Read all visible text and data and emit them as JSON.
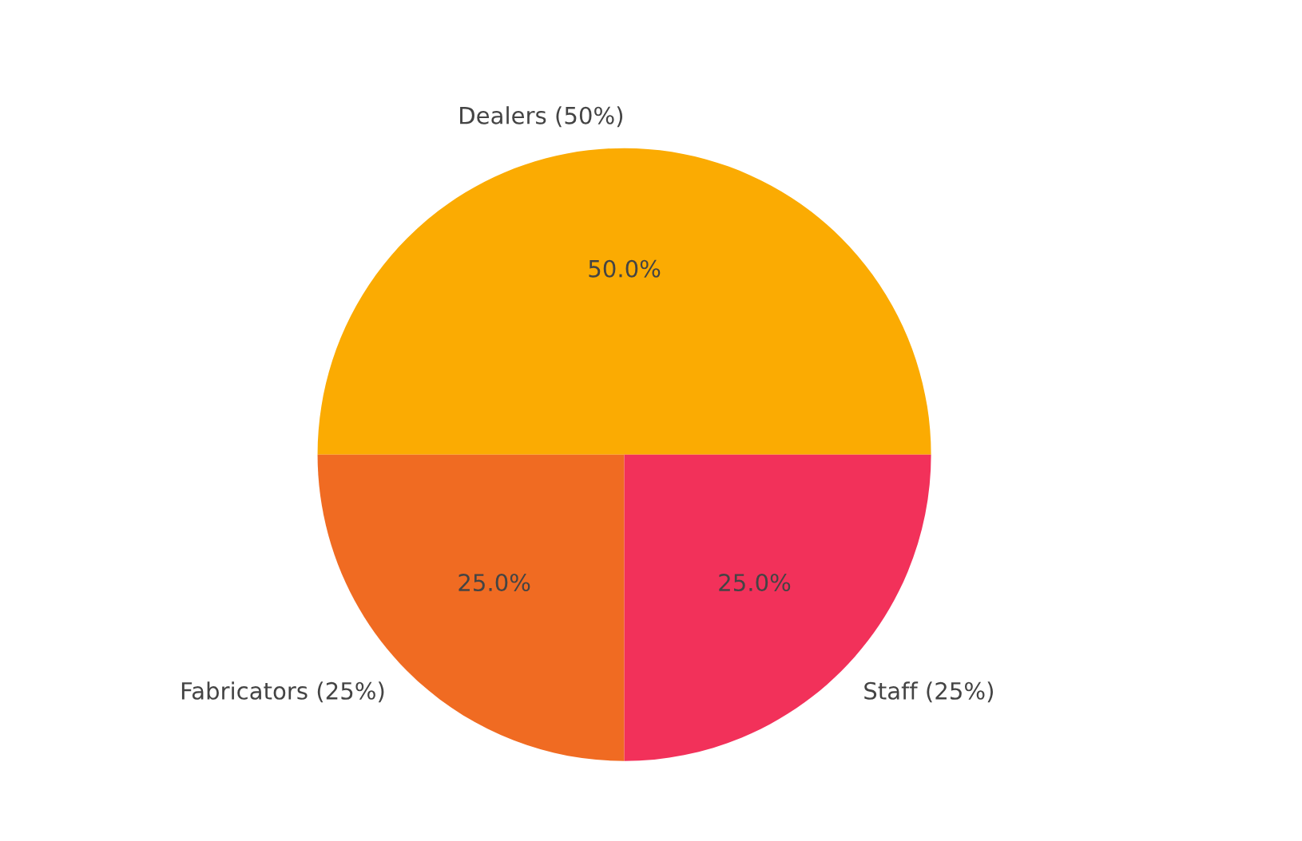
{
  "chart_data": {
    "type": "pie",
    "categories": [
      "Dealers (50%)",
      "Fabricators (25%)",
      "Staff (25%)"
    ],
    "values": [
      50,
      25,
      25
    ],
    "colors": [
      "#fbab02",
      "#f06b22",
      "#f2315a"
    ],
    "value_labels": [
      "50.0%",
      "25.0%",
      "25.0%"
    ]
  }
}
